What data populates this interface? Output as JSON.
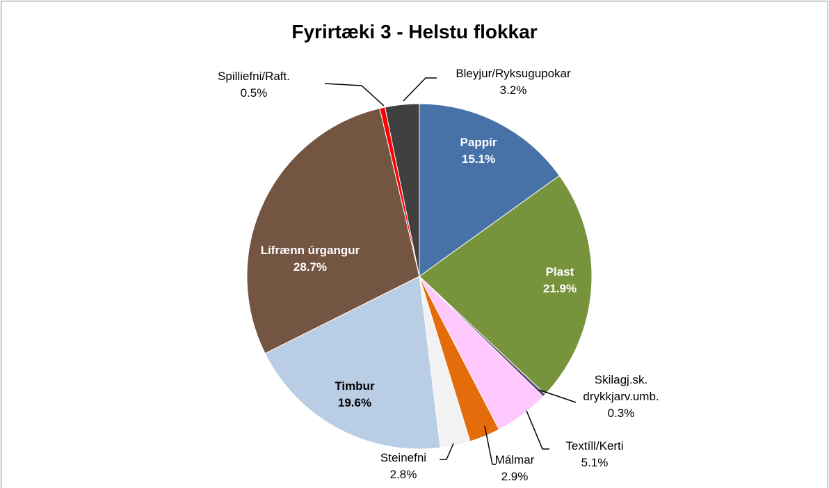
{
  "chart_data": {
    "type": "pie",
    "title": "Fyrirtæki 3 - Helstu flokkar",
    "categories": [
      "Pappír",
      "Plast",
      "Skilagj.sk. drykkjarv.umb.",
      "Textíll/Kerti",
      "Málmar",
      "Steinefni",
      "Timbur",
      "Lífrænn úrgangur",
      "Spilliefni/Raft.",
      "Bleyjur/Ryksugupokar"
    ],
    "values": [
      15.1,
      21.9,
      0.3,
      5.1,
      2.9,
      2.8,
      19.6,
      28.7,
      0.5,
      3.2
    ],
    "value_labels": [
      "15.1%",
      "21.9%",
      "0.3%",
      "5.1%",
      "2.9%",
      "2.8%",
      "19.6%",
      "28.7%",
      "0.5%",
      "3.2%"
    ],
    "colors": [
      "#4672a8",
      "#77933c",
      "#604a7b",
      "#ffc8ff",
      "#e46c0a",
      "#f2f2f2",
      "#b9cde5",
      "#735542",
      "#ff0000",
      "#404040"
    ]
  }
}
